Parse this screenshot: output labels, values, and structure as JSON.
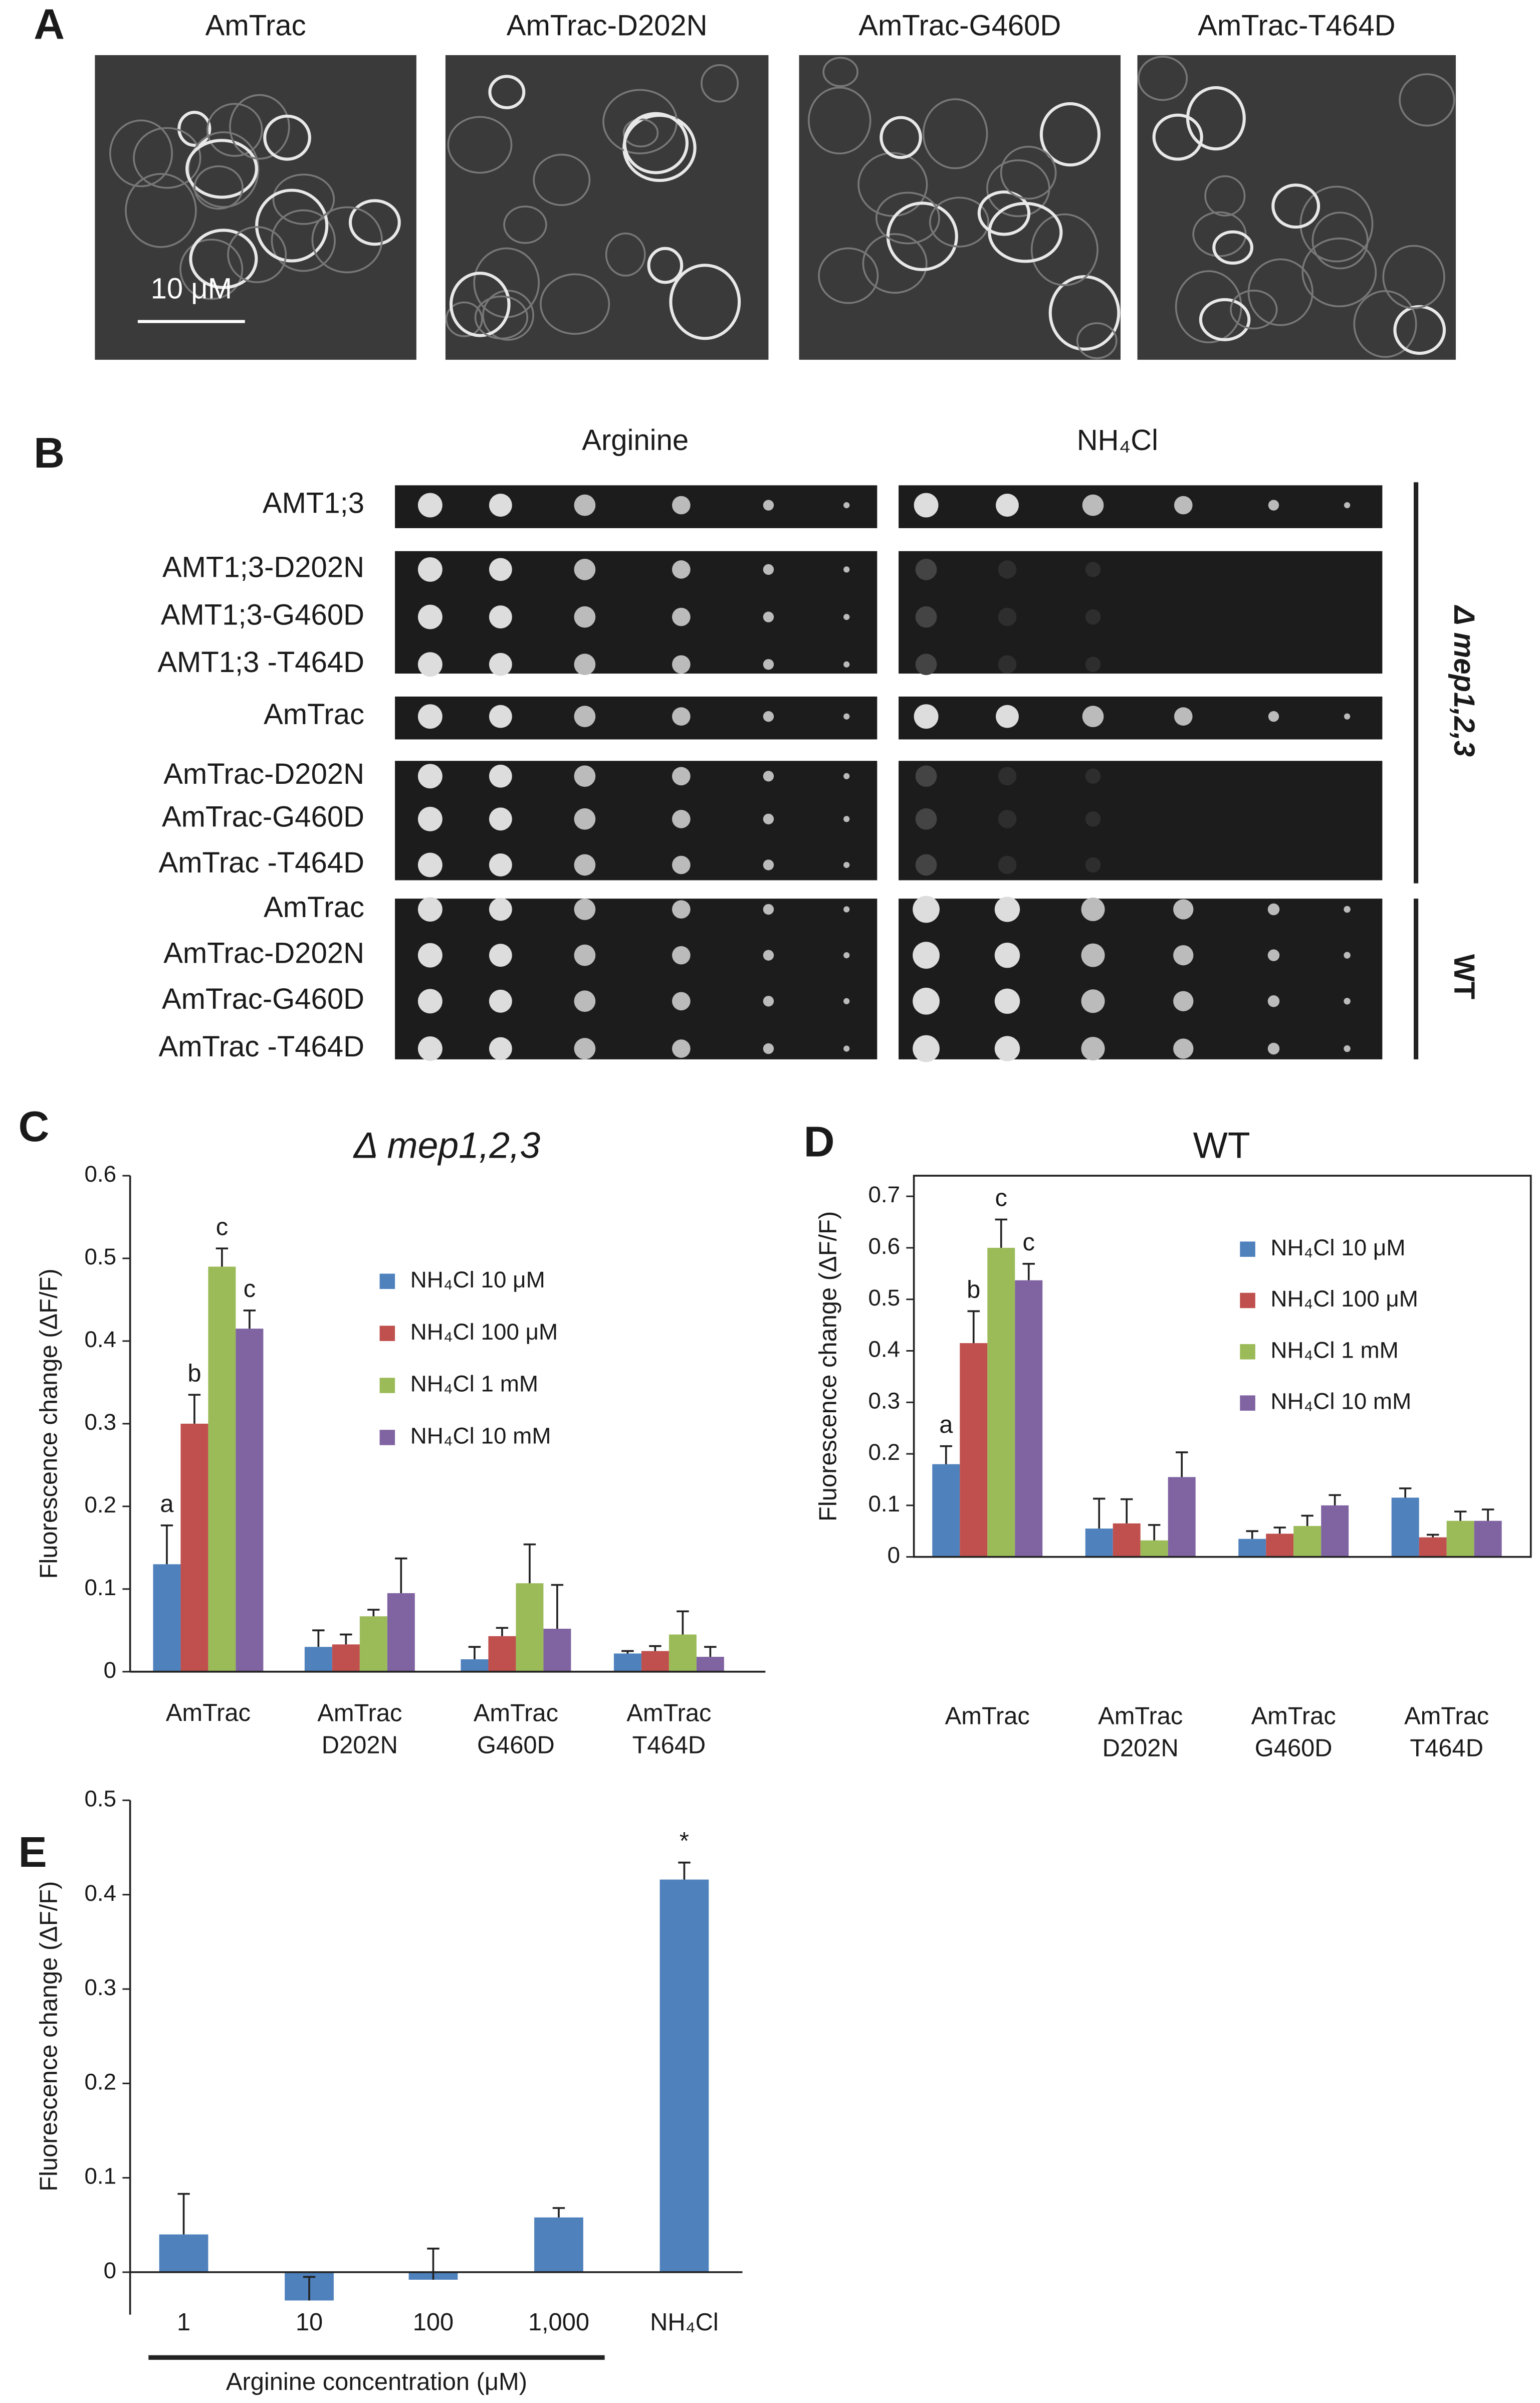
{
  "panel_labels": [
    "A",
    "B",
    "C",
    "D",
    "E"
  ],
  "panel_a": {
    "images": [
      "AmTrac",
      "AmTrac-D202N",
      "AmTrac-G460D",
      "AmTrac-T464D"
    ],
    "scale_bar": "10 μM"
  },
  "panel_b": {
    "columns": [
      "Arginine",
      "NH₄Cl"
    ],
    "rows": [
      "AMT1;3",
      "AMT1;3-D202N",
      "AMT1;3-G460D",
      "AMT1;3 -T464D",
      "AmTrac",
      "AmTrac-D202N",
      "AmTrac-G460D",
      "AmTrac -T464D",
      "AmTrac",
      "AmTrac-D202N",
      "AmTrac-G460D",
      "AmTrac -T464D"
    ],
    "groups": [
      "Δ mep1,2,3",
      "WT"
    ]
  },
  "chart_data": [
    {
      "type": "bar",
      "title": "Δ mep1,2,3",
      "ylabel": "Fluorescence change (ΔF/F)",
      "categories": [
        "AmTrac",
        "AmTrac\nD202N",
        "AmTrac\nG460D",
        "AmTrac\nT464D"
      ],
      "series": [
        {
          "name": "NH₄Cl 10 μM",
          "color": "#4f81bd",
          "values": [
            0.13,
            0.03,
            0.015,
            0.022
          ],
          "errors": [
            0.047,
            0.02,
            0.015,
            0.003
          ]
        },
        {
          "name": "NH₄Cl 100 μM",
          "color": "#c0504d",
          "values": [
            0.3,
            0.033,
            0.043,
            0.025
          ],
          "errors": [
            0.035,
            0.012,
            0.01,
            0.006
          ]
        },
        {
          "name": "NH₄Cl 1 mM",
          "color": "#9bbb59",
          "values": [
            0.49,
            0.067,
            0.107,
            0.045
          ],
          "errors": [
            0.022,
            0.008,
            0.047,
            0.028
          ]
        },
        {
          "name": "NH₄Cl 10 mM",
          "color": "#8064a2",
          "values": [
            0.415,
            0.095,
            0.052,
            0.018
          ],
          "errors": [
            0.022,
            0.042,
            0.053,
            0.012
          ]
        }
      ],
      "annotations": [
        "a",
        "b",
        "c",
        "c"
      ],
      "ylim": [
        0,
        0.6
      ],
      "yticks": [
        0,
        0.1,
        0.2,
        0.3,
        0.4,
        0.5,
        0.6
      ]
    },
    {
      "type": "bar",
      "title": "WT",
      "ylabel": "Fluorescence change (ΔF/F)",
      "categories": [
        "AmTrac",
        "AmTrac\nD202N",
        "AmTrac\nG460D",
        "AmTrac\nT464D"
      ],
      "series": [
        {
          "name": "NH₄Cl 10 μM",
          "color": "#4f81bd",
          "values": [
            0.18,
            0.055,
            0.035,
            0.115
          ],
          "errors": [
            0.035,
            0.058,
            0.015,
            0.018
          ]
        },
        {
          "name": "NH₄Cl 100 μM",
          "color": "#c0504d",
          "values": [
            0.415,
            0.065,
            0.045,
            0.038
          ],
          "errors": [
            0.062,
            0.047,
            0.012,
            0.005
          ]
        },
        {
          "name": "NH₄Cl 1 mM",
          "color": "#9bbb59",
          "values": [
            0.6,
            0.032,
            0.06,
            0.07
          ],
          "errors": [
            0.055,
            0.03,
            0.02,
            0.018
          ]
        },
        {
          "name": "NH₄Cl 10 mM",
          "color": "#8064a2",
          "values": [
            0.537,
            0.155,
            0.1,
            0.07
          ],
          "errors": [
            0.032,
            0.048,
            0.02,
            0.022
          ]
        }
      ],
      "annotations": [
        "a",
        "b",
        "c",
        "c"
      ],
      "ylim": [
        0,
        0.74
      ],
      "yticks": [
        0,
        0.1,
        0.2,
        0.3,
        0.4,
        0.5,
        0.6,
        0.7
      ]
    },
    {
      "type": "bar",
      "ylabel": "Fluorescence change (ΔF/F)",
      "xlabel": "Arginine concentration (μM)",
      "categories": [
        "1",
        "10",
        "100",
        "1,000",
        "NH₄Cl"
      ],
      "series": [
        {
          "color": "#4f81bd",
          "values": [
            0.04,
            -0.03,
            -0.008,
            0.058,
            0.416
          ],
          "errors": [
            0.043,
            0.025,
            0.033,
            0.01,
            0.018
          ]
        }
      ],
      "annotations": [
        "*"
      ],
      "ylim": [
        -0.045,
        0.5
      ],
      "yticks": [
        0,
        0.1,
        0.2,
        0.3,
        0.4,
        0.5
      ]
    }
  ]
}
